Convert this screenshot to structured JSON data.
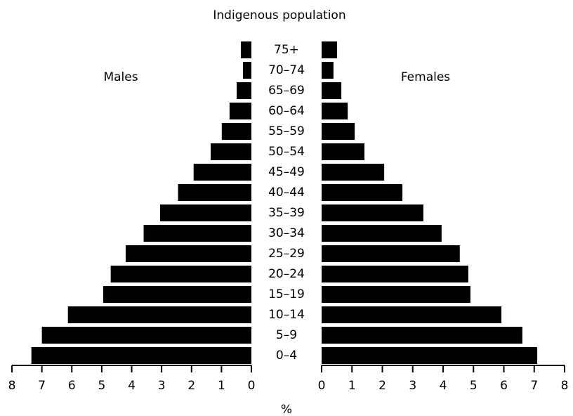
{
  "chart_data": {
    "type": "bar",
    "orientation": "horizontal-pyramid",
    "title": "Indigenous population",
    "x_label": "%",
    "categories": [
      "0–4",
      "5–9",
      "10–14",
      "15–19",
      "20–24",
      "25–29",
      "30–34",
      "35–39",
      "40–44",
      "45–49",
      "50–54",
      "55–59",
      "60–64",
      "65–69",
      "70–74",
      "75+"
    ],
    "series": [
      {
        "name": "Males",
        "color": "#000000",
        "values": [
          7.35,
          7.0,
          6.13,
          4.95,
          4.7,
          4.2,
          3.6,
          3.05,
          2.45,
          1.93,
          1.36,
          0.99,
          0.73,
          0.49,
          0.28,
          0.35
        ]
      },
      {
        "name": "Females",
        "color": "#000000",
        "values": [
          7.1,
          6.61,
          5.92,
          4.9,
          4.83,
          4.55,
          3.95,
          3.35,
          2.66,
          2.06,
          1.41,
          1.09,
          0.86,
          0.65,
          0.39,
          0.51
        ]
      }
    ],
    "xlim": [
      0,
      8
    ],
    "xticks": [
      0,
      1,
      2,
      3,
      4,
      5,
      6,
      7,
      8
    ]
  }
}
